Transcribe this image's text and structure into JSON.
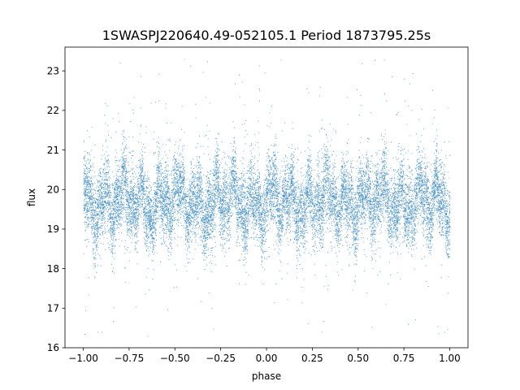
{
  "chart_data": {
    "type": "scatter",
    "title": "1SWASPJ220640.49-052105.1 Period 1873795.25s",
    "xlabel": "phase",
    "ylabel": "flux",
    "xlim": [
      -1.1,
      1.1
    ],
    "ylim": [
      16.0,
      23.6
    ],
    "x_ticks": [
      -1.0,
      -0.75,
      -0.5,
      -0.25,
      0.0,
      0.25,
      0.5,
      0.75,
      1.0
    ],
    "x_tick_labels": [
      "−1.00",
      "−0.75",
      "−0.50",
      "−0.25",
      "0.00",
      "0.25",
      "0.50",
      "0.75",
      "1.00"
    ],
    "y_ticks": [
      16,
      17,
      18,
      19,
      20,
      21,
      22,
      23
    ],
    "y_tick_labels": [
      "16",
      "17",
      "18",
      "19",
      "20",
      "21",
      "22",
      "23"
    ],
    "grid": false,
    "legend": "none",
    "marker_color": "#1f77b4",
    "series": [
      {
        "x_range": [
          -1.0,
          1.0
        ],
        "core_median": 19.7,
        "core_spread": 0.45,
        "flare_max": 22.0,
        "dip_min": 18.2,
        "outlier_range": [
          16.3,
          23.3
        ],
        "sample_points": [
          [
            -0.98,
            21.5
          ],
          [
            -0.93,
            18.5
          ],
          [
            -0.84,
            21.8
          ],
          [
            -0.7,
            21.2
          ],
          [
            -0.6,
            18.4
          ],
          [
            -0.48,
            21.1
          ],
          [
            -0.36,
            18.6
          ],
          [
            -0.26,
            21.0
          ],
          [
            -0.12,
            18.3
          ],
          [
            0.05,
            21.3
          ],
          [
            0.14,
            21.7
          ],
          [
            0.23,
            18.4
          ],
          [
            0.31,
            21.1
          ],
          [
            0.43,
            18.7
          ],
          [
            0.55,
            21.3
          ],
          [
            0.68,
            21.2
          ],
          [
            0.79,
            18.5
          ],
          [
            0.86,
            18.3
          ],
          [
            0.97,
            21.2
          ],
          [
            -0.8,
            23.2
          ],
          [
            -0.45,
            23.3
          ],
          [
            0.52,
            23.2
          ],
          [
            -0.9,
            16.4
          ],
          [
            -0.65,
            16.3
          ],
          [
            0.3,
            16.4
          ],
          [
            0.97,
            16.4
          ],
          [
            -0.3,
            17.0
          ],
          [
            0.65,
            17.1
          ],
          [
            -0.15,
            22.9
          ],
          [
            0.75,
            22.8
          ]
        ]
      }
    ]
  }
}
